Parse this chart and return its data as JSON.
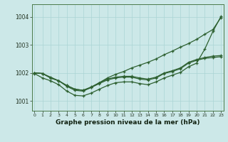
{
  "title": "Graphe pression niveau de la mer (hPa)",
  "bg_color": "#cce8e8",
  "grid_color": "#aad4d4",
  "line_color": "#2d6030",
  "xlim": [
    -0.3,
    23.3
  ],
  "ylim": [
    1000.65,
    1004.45
  ],
  "yticks": [
    1001,
    1002,
    1003,
    1004
  ],
  "xticks": [
    0,
    1,
    2,
    3,
    4,
    5,
    6,
    7,
    8,
    9,
    10,
    11,
    12,
    13,
    14,
    15,
    16,
    17,
    18,
    19,
    20,
    21,
    22,
    23
  ],
  "line_steep": [
    1002.0,
    1001.98,
    1001.85,
    1001.72,
    1001.55,
    1001.42,
    1001.38,
    1001.48,
    1001.65,
    1001.82,
    1001.95,
    1002.05,
    1002.18,
    1002.28,
    1002.38,
    1002.5,
    1002.65,
    1002.78,
    1002.92,
    1003.05,
    1003.2,
    1003.38,
    1003.55,
    1003.98
  ],
  "line_low_dip": [
    1001.98,
    1001.82,
    1001.72,
    1001.58,
    1001.35,
    1001.2,
    1001.18,
    1001.28,
    1001.42,
    1001.55,
    1001.65,
    1001.68,
    1001.68,
    1001.62,
    1001.58,
    1001.68,
    1001.82,
    1001.92,
    1002.02,
    1002.22,
    1002.35,
    1002.85,
    1003.48,
    1004.02
  ],
  "line_flat1": [
    1002.0,
    1001.98,
    1001.82,
    1001.72,
    1001.55,
    1001.42,
    1001.38,
    1001.5,
    1001.65,
    1001.78,
    1001.85,
    1001.88,
    1001.88,
    1001.82,
    1001.78,
    1001.85,
    1002.0,
    1002.08,
    1002.18,
    1002.38,
    1002.48,
    1002.55,
    1002.6,
    1002.62
  ],
  "line_flat2": [
    1002.0,
    1001.98,
    1001.82,
    1001.72,
    1001.52,
    1001.38,
    1001.35,
    1001.48,
    1001.62,
    1001.75,
    1001.82,
    1001.85,
    1001.85,
    1001.78,
    1001.75,
    1001.82,
    1001.98,
    1002.05,
    1002.15,
    1002.35,
    1002.45,
    1002.52,
    1002.55,
    1002.58
  ]
}
